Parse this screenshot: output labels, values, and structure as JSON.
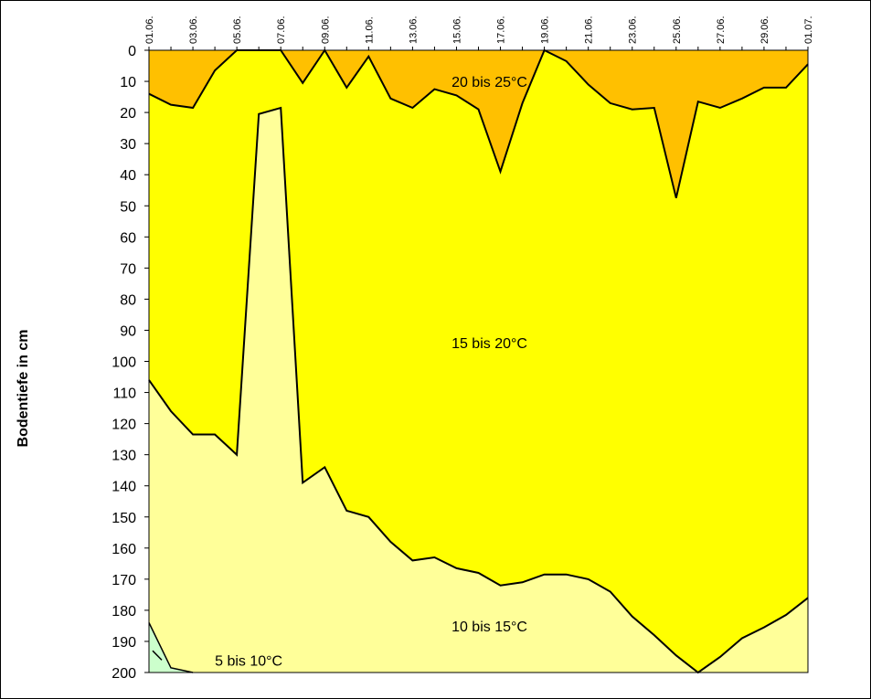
{
  "chart_data": {
    "type": "area",
    "title": "",
    "xlabel": "",
    "ylabel": "Bodentiefe in cm",
    "ylim": [
      0,
      200
    ],
    "y_inverted": true,
    "y_ticks": [
      "0",
      "10",
      "20",
      "30",
      "40",
      "50",
      "60",
      "70",
      "80",
      "90",
      "100",
      "110",
      "120",
      "130",
      "140",
      "150",
      "160",
      "170",
      "180",
      "190",
      "200"
    ],
    "x_tick_labels": [
      "01.06.",
      "03.06.",
      "05.06.",
      "07.06.",
      "09.06.",
      "11.06.",
      "13.06.",
      "15.06.",
      "17.06.",
      "19.06.",
      "21.06.",
      "23.06.",
      "25.06.",
      "27.06.",
      "29.06.",
      "01.07."
    ],
    "grid": false,
    "legend": "none",
    "zones": [
      {
        "label": "20 bis 25°C",
        "color": "#FFC000"
      },
      {
        "label": "15 bis 20°C",
        "color": "#FFFF00"
      },
      {
        "label": "10 bis 15°C",
        "color": "#FFFF99"
      },
      {
        "label": "5 bis 10°C",
        "color": "#CCFFCC"
      }
    ],
    "series": [
      {
        "name": "20 bis 25°C",
        "values": [
          14,
          17.5,
          18.5,
          6.5,
          0,
          null,
          0,
          10.5,
          0,
          12,
          2,
          15.5,
          18.5,
          12.5,
          14.5,
          19,
          39,
          17,
          0,
          3.5,
          11,
          17,
          19,
          18.5,
          47.5,
          16.5,
          18.5,
          15.5,
          12,
          12,
          4.5
        ]
      },
      {
        "name": "15 bis 20°C",
        "values": [
          106,
          116,
          123.5,
          123.5,
          130,
          20.5,
          18.5,
          139,
          134,
          148,
          150,
          158,
          164,
          163,
          166.5,
          168,
          172,
          171,
          168.5,
          168.5,
          170,
          174,
          182,
          188,
          194.5,
          200,
          195,
          189,
          185.5,
          181.5,
          176
        ]
      },
      {
        "name": "10 bis 15°C",
        "values": [
          184,
          198.5,
          200
        ]
      }
    ],
    "annotations": [
      {
        "text": "20 bis 25°C",
        "x": 15.5,
        "y": 10
      },
      {
        "text": "15 bis 20°C",
        "x": 15.5,
        "y": 94
      },
      {
        "text": "10 bis 15°C",
        "x": 15.5,
        "y": 185
      },
      {
        "text": "5 bis 10°C",
        "x": 3,
        "y": 196
      }
    ]
  }
}
